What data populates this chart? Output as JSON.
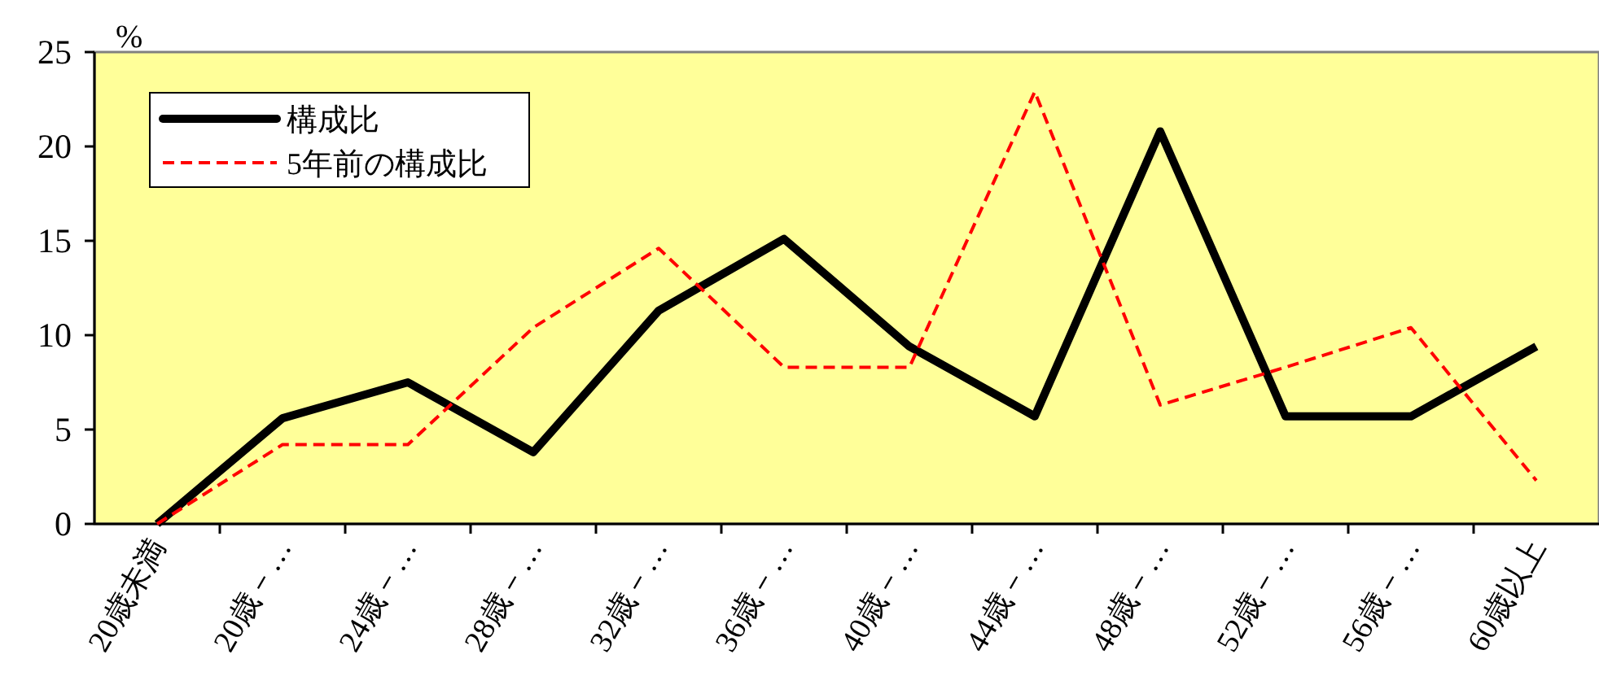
{
  "chart_data": {
    "type": "line",
    "categories": [
      "20歳未満",
      "20歳－…",
      "24歳－…",
      "28歳－…",
      "32歳－…",
      "36歳－…",
      "40歳－…",
      "44歳－…",
      "48歳－…",
      "52歳－…",
      "56歳－…",
      "60歳以上"
    ],
    "series": [
      {
        "name": "構成比",
        "color": "#000000",
        "line_style": "solid",
        "values": [
          0,
          5.6,
          7.5,
          3.8,
          11.3,
          15.1,
          9.4,
          5.7,
          20.8,
          5.7,
          5.7,
          9.4
        ]
      },
      {
        "name": "5年前の構成比",
        "color": "#ff0000",
        "line_style": "dashed",
        "values": [
          0,
          4.2,
          4.2,
          10.4,
          14.6,
          8.3,
          8.3,
          22.9,
          6.3,
          8.3,
          10.4,
          2.3
        ]
      }
    ],
    "ylabel": "%",
    "ylim": [
      0,
      25
    ],
    "yticks": [
      0,
      5,
      10,
      15,
      20,
      25
    ],
    "grid": false,
    "legend": "top left"
  }
}
